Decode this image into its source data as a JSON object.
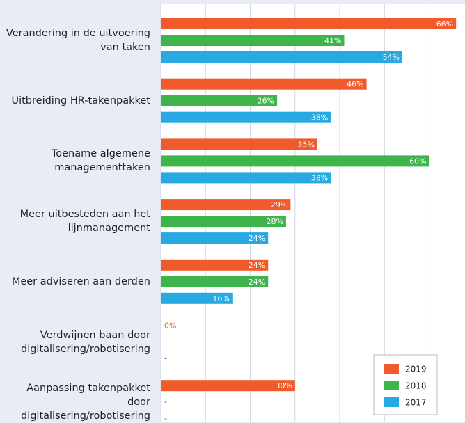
{
  "chart_data": {
    "type": "bar",
    "orientation": "horizontal",
    "categories": [
      "Verandering in de uitvoering\nvan taken",
      "Uitbreiding HR-takenpakket",
      "Toename algemene\nmanagementtaken",
      "Meer uitbesteden aan het\nlijnmanagement",
      "Meer adviseren aan derden",
      "Verdwijnen baan door\ndigitalisering/robotisering",
      "Aanpassing takenpakket door\ndigitalisering/robotisering"
    ],
    "series": [
      {
        "name": "2019",
        "color": "#f15a2b",
        "values": [
          66,
          46,
          35,
          29,
          24,
          0,
          30
        ],
        "value_labels": [
          "66%",
          "46%",
          "35%",
          "29%",
          "24%",
          "0%",
          "30%"
        ]
      },
      {
        "name": "2018",
        "color": "#3db54a",
        "values": [
          41,
          26,
          60,
          28,
          24,
          null,
          null
        ],
        "value_labels": [
          "41%",
          "26%",
          "60%",
          "28%",
          "24%",
          "-",
          "-"
        ]
      },
      {
        "name": "2017",
        "color": "#29a9e1",
        "values": [
          54,
          38,
          38,
          24,
          16,
          null,
          null
        ],
        "value_labels": [
          "54%",
          "38%",
          "38%",
          "24%",
          "16%",
          "-",
          "-"
        ]
      }
    ],
    "xlim": [
      0,
      68
    ],
    "xticks": [
      0,
      10,
      20,
      30,
      40,
      50,
      60
    ],
    "grid": true,
    "legend": "lower right"
  }
}
